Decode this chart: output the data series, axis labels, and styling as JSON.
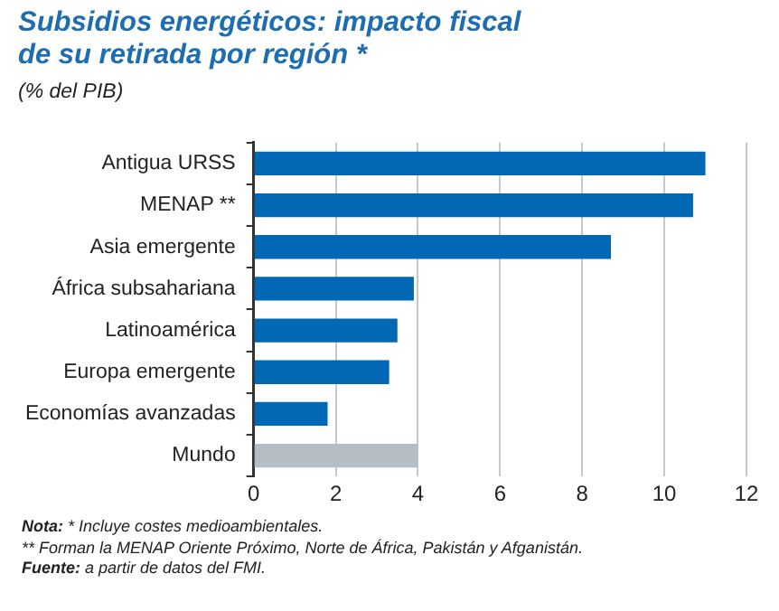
{
  "chart_data": {
    "type": "bar",
    "orientation": "horizontal",
    "title": "Subsidios energéticos: impacto fiscal de su retirada por región *",
    "subtitle": "(% del PIB)",
    "categories": [
      "Antigua URSS",
      "MENAP **",
      "Asia emergente",
      "África subsahariana",
      "Latinoamérica",
      "Europa emergente",
      "Economías avanzadas",
      "Mundo"
    ],
    "values": [
      11.0,
      10.7,
      8.7,
      3.9,
      3.5,
      3.3,
      1.8,
      4.0
    ],
    "colors": [
      "#0068b4",
      "#0068b4",
      "#0068b4",
      "#0068b4",
      "#0068b4",
      "#0068b4",
      "#0068b4",
      "#b4bec4"
    ],
    "xlim": [
      0,
      12
    ],
    "xticks": [
      0,
      2,
      4,
      6,
      8,
      10,
      12
    ],
    "grid": "x",
    "legend": false,
    "annotations": [
      "Nota: * Incluye costes medioambientales.",
      "** Forman la MENAP Oriente Próximo, Norte de África, Pakistán y Afganistán.",
      "Fuente: a partir de datos del FMI."
    ]
  }
}
